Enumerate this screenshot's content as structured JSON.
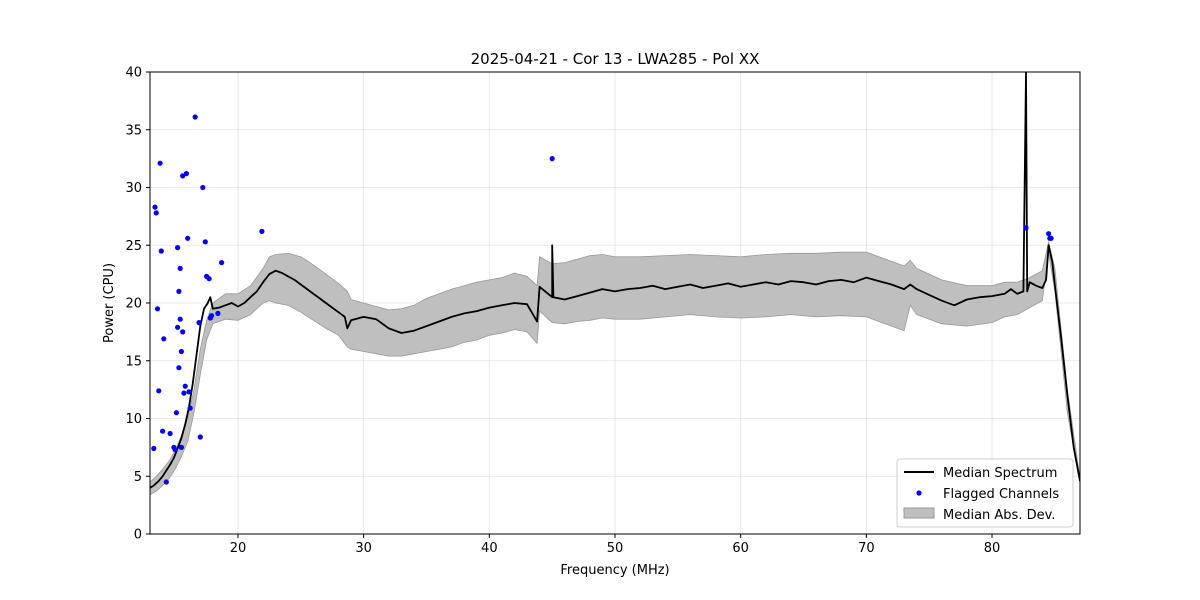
{
  "chart_data": {
    "type": "line",
    "title": "2025-04-21 - Cor 13 - LWA285 - Pol XX",
    "xlabel": "Frequency (MHz)",
    "ylabel": "Power (CPU)",
    "xlim": [
      13,
      87
    ],
    "ylim": [
      0,
      40
    ],
    "xticks": [
      20,
      30,
      40,
      50,
      60,
      70,
      80
    ],
    "yticks": [
      0,
      5,
      10,
      15,
      20,
      25,
      30,
      35,
      40
    ],
    "grid": true,
    "legend_position": "lower-right",
    "legend": [
      "Median Spectrum",
      "Flagged Channels",
      "Median Abs. Dev."
    ],
    "colors": {
      "median": "#000000",
      "flagged": "#0000ff",
      "mad_fill": "#bfbfbf",
      "mad_edge": "#999999"
    },
    "series": [
      {
        "name": "Median Spectrum",
        "x": [
          13.0,
          13.3,
          13.5,
          13.7,
          14.0,
          14.3,
          14.6,
          14.9,
          15.2,
          15.5,
          15.8,
          16.1,
          16.4,
          16.7,
          17.0,
          17.3,
          17.6,
          17.8,
          18.0,
          18.5,
          19.0,
          19.5,
          20.0,
          20.5,
          21.0,
          21.5,
          22.0,
          22.5,
          23.0,
          23.5,
          24.0,
          24.5,
          25.0,
          25.5,
          26.0,
          26.5,
          27.0,
          27.5,
          28.0,
          28.5,
          28.7,
          29.0,
          30.0,
          31.0,
          32.0,
          33.0,
          34.0,
          35.0,
          36.0,
          37.0,
          38.0,
          39.0,
          40.0,
          41.0,
          42.0,
          43.0,
          43.8,
          44.0,
          45.0,
          45.0,
          45.1,
          46.0,
          47.0,
          48.0,
          49.0,
          50.0,
          51.0,
          52.0,
          53.0,
          54.0,
          55.0,
          56.0,
          57.0,
          58.0,
          59.0,
          60.0,
          61.0,
          62.0,
          63.0,
          64.0,
          65.0,
          66.0,
          67.0,
          68.0,
          69.0,
          70.0,
          71.0,
          72.0,
          73.0,
          73.5,
          74.0,
          75.0,
          76.0,
          77.0,
          78.0,
          79.0,
          80.0,
          81.0,
          81.5,
          82.0,
          82.5,
          82.7,
          82.8,
          83.0,
          83.5,
          84.0,
          84.3,
          84.5,
          84.8,
          85.0,
          85.5,
          86.0,
          86.5,
          87.0
        ],
        "y": [
          4.0,
          4.2,
          4.4,
          4.6,
          5.0,
          5.5,
          6.0,
          6.6,
          7.4,
          8.3,
          9.5,
          11.0,
          13.0,
          15.5,
          18.0,
          19.5,
          20.0,
          20.5,
          19.5,
          19.6,
          19.8,
          20.0,
          19.7,
          20.0,
          20.5,
          21.0,
          21.8,
          22.5,
          22.8,
          22.6,
          22.3,
          22.0,
          21.6,
          21.2,
          20.8,
          20.4,
          20.0,
          19.6,
          19.2,
          18.8,
          17.8,
          18.5,
          18.8,
          18.6,
          17.8,
          17.4,
          17.6,
          18.0,
          18.4,
          18.8,
          19.1,
          19.3,
          19.6,
          19.8,
          20.0,
          19.9,
          18.4,
          21.4,
          20.5,
          25.0,
          20.5,
          20.3,
          20.6,
          20.9,
          21.2,
          21.0,
          21.2,
          21.3,
          21.5,
          21.2,
          21.4,
          21.6,
          21.3,
          21.5,
          21.7,
          21.4,
          21.6,
          21.8,
          21.6,
          21.9,
          21.8,
          21.6,
          21.9,
          22.0,
          21.8,
          22.2,
          21.9,
          21.6,
          21.2,
          21.6,
          21.2,
          20.7,
          20.2,
          19.8,
          20.3,
          20.5,
          20.6,
          20.8,
          21.2,
          20.8,
          21.0,
          40.0,
          21.0,
          21.8,
          21.5,
          21.3,
          22.0,
          25.0,
          23.5,
          21.5,
          17.0,
          12.0,
          7.5,
          4.6
        ]
      },
      {
        "name": "Median Abs. Dev.",
        "x": [
          13.0,
          13.5,
          14.0,
          14.5,
          15.0,
          15.5,
          16.0,
          16.5,
          17.0,
          17.5,
          18.0,
          19.0,
          20.0,
          21.0,
          22.0,
          22.5,
          23.0,
          24.0,
          25.0,
          26.0,
          27.0,
          28.0,
          28.7,
          29.0,
          30.0,
          31.0,
          32.0,
          33.0,
          34.0,
          35.0,
          36.0,
          37.0,
          38.0,
          39.0,
          40.0,
          41.0,
          42.0,
          43.0,
          43.8,
          44.0,
          45.0,
          46.0,
          47.0,
          48.0,
          49.0,
          50.0,
          52.0,
          54.0,
          56.0,
          58.0,
          60.0,
          62.0,
          64.0,
          66.0,
          68.0,
          70.0,
          71.0,
          72.0,
          73.0,
          73.5,
          74.0,
          76.0,
          78.0,
          80.0,
          81.0,
          82.0,
          83.0,
          84.0,
          84.5,
          85.0,
          86.0,
          87.0
        ],
        "upper": [
          4.5,
          5.0,
          5.6,
          6.3,
          7.2,
          8.5,
          10.0,
          12.5,
          16.0,
          18.5,
          20.0,
          20.8,
          20.8,
          21.5,
          23.0,
          24.0,
          24.2,
          24.3,
          24.0,
          23.3,
          22.5,
          21.7,
          21.0,
          20.3,
          20.0,
          19.7,
          19.4,
          19.5,
          19.8,
          20.4,
          20.8,
          21.2,
          21.5,
          21.8,
          22.0,
          22.2,
          22.6,
          22.3,
          21.5,
          24.0,
          23.4,
          23.5,
          23.8,
          24.1,
          24.2,
          24.0,
          24.0,
          24.1,
          24.2,
          24.1,
          24.0,
          24.2,
          24.3,
          24.3,
          24.4,
          24.4,
          24.0,
          23.6,
          23.2,
          23.7,
          23.0,
          22.0,
          21.5,
          21.5,
          21.8,
          21.8,
          22.2,
          22.8,
          25.3,
          23.0,
          12.5,
          4.8
        ],
        "lower": [
          3.4,
          3.7,
          4.2,
          4.8,
          5.6,
          6.7,
          8.0,
          10.5,
          13.8,
          16.8,
          18.2,
          18.6,
          18.5,
          19.0,
          20.0,
          20.2,
          20.0,
          19.8,
          19.2,
          18.5,
          17.8,
          17.2,
          16.2,
          16.0,
          15.8,
          15.6,
          15.4,
          15.4,
          15.6,
          15.8,
          16.0,
          16.2,
          16.6,
          16.8,
          17.2,
          17.4,
          17.7,
          17.5,
          16.5,
          19.3,
          18.3,
          18.2,
          18.4,
          18.5,
          18.7,
          18.6,
          18.6,
          18.8,
          19.0,
          18.8,
          18.7,
          18.8,
          19.0,
          18.8,
          18.9,
          18.8,
          18.4,
          18.0,
          17.6,
          19.8,
          19.0,
          18.2,
          18.0,
          18.3,
          18.8,
          19.0,
          19.6,
          20.2,
          24.3,
          21.0,
          10.5,
          4.4
        ]
      },
      {
        "name": "Flagged Channels",
        "x": [
          13.3,
          13.4,
          13.5,
          13.6,
          13.7,
          13.8,
          13.9,
          14.0,
          14.1,
          14.3,
          14.6,
          14.9,
          15.0,
          15.1,
          15.2,
          15.2,
          15.3,
          15.3,
          15.4,
          15.4,
          15.5,
          15.5,
          15.6,
          15.6,
          15.7,
          15.8,
          15.9,
          16.0,
          16.1,
          16.2,
          16.6,
          16.9,
          17.0,
          17.2,
          17.4,
          17.5,
          17.7,
          17.8,
          17.9,
          18.4,
          18.7,
          21.9,
          45.0,
          82.7,
          84.5,
          84.6,
          84.7
        ],
        "y": [
          7.4,
          28.3,
          27.8,
          19.5,
          12.4,
          32.1,
          24.5,
          8.9,
          16.9,
          4.5,
          8.7,
          7.5,
          7.3,
          10.5,
          24.8,
          17.9,
          14.4,
          21.0,
          18.6,
          23.0,
          7.5,
          15.8,
          17.5,
          31.0,
          12.2,
          12.8,
          31.2,
          25.6,
          12.3,
          10.9,
          36.1,
          18.3,
          8.4,
          30.0,
          25.3,
          22.3,
          22.1,
          18.7,
          18.9,
          19.1,
          23.5,
          26.2,
          32.5,
          26.5,
          26.0,
          25.6,
          25.6
        ],
        "y_note": ""
      }
    ]
  }
}
